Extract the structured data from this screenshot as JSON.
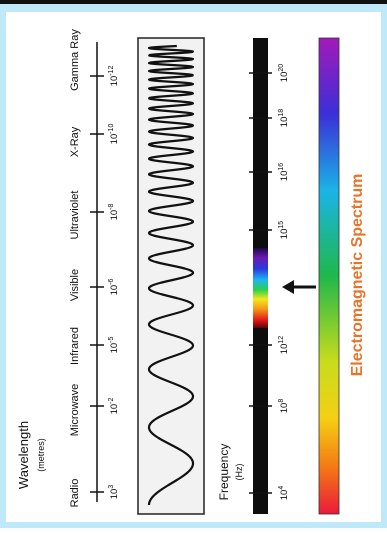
{
  "colors": {
    "frame": "#bfe8f8",
    "band_bg": "#f2f2f2",
    "ink": "#111111",
    "title": "#e8742a"
  },
  "wavelength": {
    "label": "Wavelength",
    "unit": "(metres)",
    "ticks": [
      {
        "base": "10",
        "exp": "3"
      },
      {
        "base": "10",
        "exp": "-2"
      },
      {
        "base": "10",
        "exp": "-5"
      },
      {
        "base": "10",
        "exp": "-6"
      },
      {
        "base": "10",
        "exp": "-8"
      },
      {
        "base": "10",
        "exp": "-10"
      },
      {
        "base": "10",
        "exp": "-12"
      }
    ]
  },
  "regions": [
    "Radio",
    "Microwave",
    "Infrared",
    "Visible",
    "Ultraviolet",
    "X-Ray",
    "Gamma Ray"
  ],
  "frequency": {
    "label": "Frequency",
    "unit": "(Hz)",
    "ticks": [
      {
        "base": "10",
        "exp": "4"
      },
      {
        "base": "10",
        "exp": "8"
      },
      {
        "base": "10",
        "exp": "12"
      },
      {
        "base": "10",
        "exp": "15"
      },
      {
        "base": "10",
        "exp": "16"
      },
      {
        "base": "10",
        "exp": "18"
      },
      {
        "base": "10",
        "exp": "20"
      }
    ]
  },
  "title": "Electromagnetic Spectrum",
  "icons": {
    "visible_pointer": "arrow-left-icon"
  }
}
